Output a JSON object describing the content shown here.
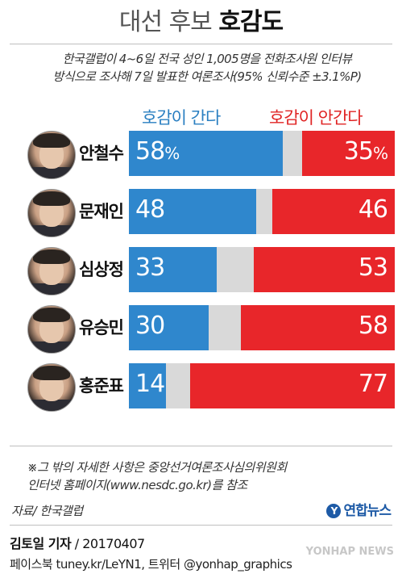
{
  "header": {
    "title_light": "대선 후보",
    "title_bold": "호감도",
    "subtitle_line1": "한국갤럽이 4~6일 전국 성인 1,005명을 전화조사원 인터뷰",
    "subtitle_line2": "방식으로 조사해 7일 발표한 여론조사(95% 신뢰수준 ±3.1%P)"
  },
  "legend": {
    "favorable": "호감이 간다",
    "unfavorable": "호감이 안간다"
  },
  "colors": {
    "favorable": "#2f87cd",
    "unfavorable": "#e8262a",
    "neutral": "#d9d9d9"
  },
  "chart_data": {
    "type": "bar",
    "orientation": "horizontal-stacked",
    "unit": "%",
    "categories": [
      "안철수",
      "문재인",
      "심상정",
      "유승민",
      "홍준표"
    ],
    "series": [
      {
        "name": "호감이 간다",
        "values": [
          58,
          48,
          33,
          30,
          14
        ]
      },
      {
        "name": "호감이 안간다",
        "values": [
          35,
          46,
          53,
          58,
          77
        ]
      }
    ],
    "labels_fav": [
      "58",
      "48",
      "33",
      "30",
      "14"
    ],
    "labels_unfav": [
      "35",
      "46",
      "53",
      "58",
      "77"
    ],
    "pct_sign": "%",
    "xlim": [
      0,
      100
    ]
  },
  "footer": {
    "note_line1": "※그 밖의 자세한 사항은 중앙선거여론조사심의위원회",
    "note_line2": "인터넷 홈페이지(www.nesdc.go.kr)를 참조",
    "source": "자료/ 한국갤럽",
    "logo_text": "연합뉴스",
    "logo_mark": "Y",
    "reporter_name": "김토일 기자",
    "reporter_date": " / 20170407",
    "social": "페이스북 tuney.kr/LeYN1, 트위터 @yonhap_graphics",
    "watermark": "YONHAP NEWS"
  }
}
